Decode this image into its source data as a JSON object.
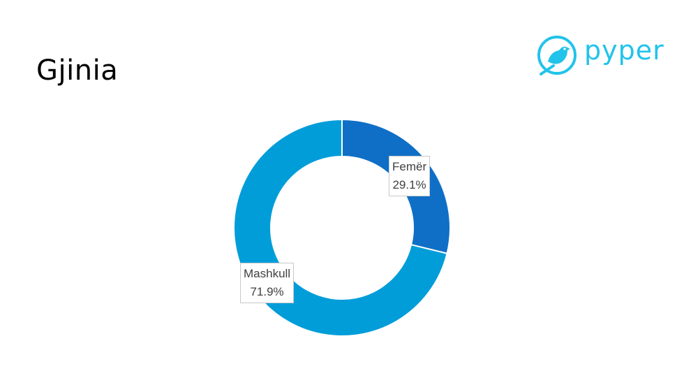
{
  "slide": {
    "title": "Gjinia",
    "logo_text": "pyper",
    "logo_color": "#22c3ea"
  },
  "chart_data": {
    "type": "pie",
    "donut": true,
    "slices": [
      {
        "label": "Femër",
        "value": 29.1,
        "display": "29.1%",
        "color": "#0f6fc6"
      },
      {
        "label": "Mashkull",
        "value": 71.9,
        "display": "71.9%",
        "color": "#009dd9"
      }
    ]
  }
}
